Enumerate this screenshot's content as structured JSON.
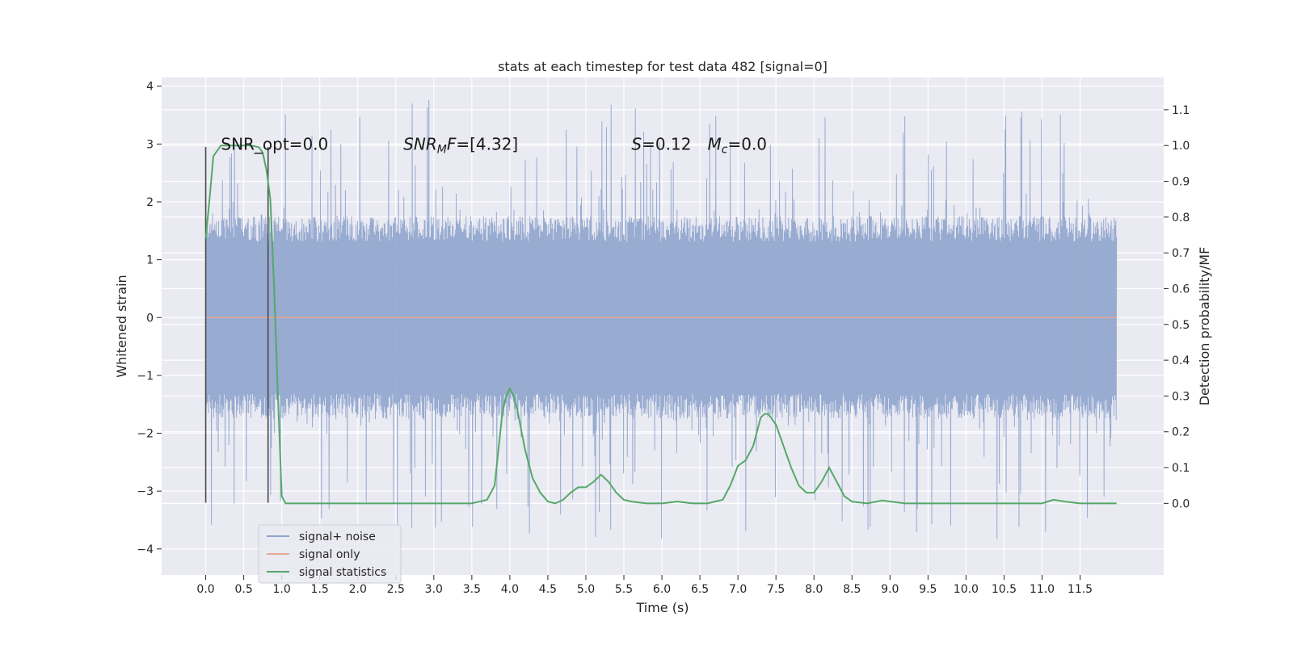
{
  "chart_data": {
    "type": "line",
    "title": "stats at each timestep for test data 482 [signal=0]",
    "xlabel": "Time (s)",
    "ylabel_left": "Whitened strain",
    "ylabel_right": "Detection probability/MF",
    "xlim": [
      -0.58,
      12.6
    ],
    "ylim_left": [
      -4.45,
      4.15
    ],
    "ylim_right": [
      -0.2,
      1.19
    ],
    "x_ticks": [
      "0.0",
      "0.5",
      "1.0",
      "1.5",
      "2.0",
      "2.5",
      "3.0",
      "3.5",
      "4.0",
      "4.5",
      "5.0",
      "5.5",
      "6.0",
      "6.5",
      "7.0",
      "7.5",
      "8.0",
      "8.5",
      "9.0",
      "9.5",
      "10.0",
      "10.5",
      "11.0",
      "11.5"
    ],
    "y_ticks_left": [
      "−4",
      "−3",
      "−2",
      "−1",
      "0",
      "1",
      "2",
      "3",
      "4"
    ],
    "y_ticks_right": [
      "0.0",
      "0.1",
      "0.2",
      "0.3",
      "0.4",
      "0.5",
      "0.6",
      "0.7",
      "0.8",
      "0.9",
      "1.0",
      "1.1"
    ],
    "grid": true,
    "legend_position": "lower-left",
    "colors": {
      "background": "#eaeaf2",
      "grid": "#ffffff",
      "signal_noise": "#8fa4cd",
      "signal_only": "#e8a78f",
      "signal_statistics": "#55a868",
      "markers": "#4a4a4a"
    },
    "annotations": [
      {
        "prefix": "SNR_opt=0.0",
        "sub": "",
        "suffix": "",
        "x": 0.2
      },
      {
        "prefix": "SNR",
        "sub": "M",
        "suffix": "F=[4.32]",
        "x": 2.6
      },
      {
        "prefix": "S=0.12",
        "sub": "",
        "suffix": "",
        "x": 5.6
      },
      {
        "prefix": "M",
        "sub": "c",
        "suffix": "=0.0",
        "x": 6.6
      }
    ],
    "annotation_y": 2.9,
    "vertical_markers": [
      {
        "x": 0.0,
        "y0": -3.2,
        "y1": 2.95
      },
      {
        "x": 0.82,
        "y0": -3.2,
        "y1": 2.95
      }
    ],
    "series": [
      {
        "name": "signal+ noise",
        "axis": "left",
        "kind": "noise",
        "x_range": [
          0.0,
          11.98
        ],
        "body_amplitude": 1.75,
        "peak_up_max": 3.8,
        "peak_down_min": -3.85
      },
      {
        "name": "signal only",
        "axis": "left",
        "x": [
          0.0,
          11.98
        ],
        "y": [
          0.0,
          0.0
        ]
      },
      {
        "name": "signal statistics",
        "axis": "right",
        "x": [
          0.0,
          0.05,
          0.1,
          0.2,
          0.3,
          0.4,
          0.5,
          0.6,
          0.7,
          0.75,
          0.8,
          0.85,
          0.9,
          0.95,
          1.0,
          1.05,
          1.1,
          1.2,
          1.5,
          2.0,
          2.5,
          3.0,
          3.3,
          3.5,
          3.7,
          3.8,
          3.9,
          3.95,
          4.0,
          4.05,
          4.1,
          4.2,
          4.3,
          4.4,
          4.5,
          4.6,
          4.7,
          4.8,
          4.9,
          5.0,
          5.1,
          5.2,
          5.3,
          5.4,
          5.5,
          5.6,
          5.8,
          6.0,
          6.2,
          6.4,
          6.6,
          6.8,
          6.9,
          7.0,
          7.1,
          7.2,
          7.3,
          7.35,
          7.4,
          7.5,
          7.6,
          7.7,
          7.8,
          7.9,
          8.0,
          8.1,
          8.2,
          8.3,
          8.4,
          8.5,
          8.7,
          8.9,
          9.0,
          9.2,
          9.5,
          10.0,
          10.5,
          11.0,
          11.15,
          11.3,
          11.5,
          11.98
        ],
        "y": [
          0.74,
          0.85,
          0.97,
          1.0,
          1.0,
          1.0,
          1.0,
          1.0,
          0.995,
          0.98,
          0.93,
          0.85,
          0.6,
          0.3,
          0.02,
          0.0,
          0.0,
          0.0,
          0.0,
          0.0,
          0.0,
          0.0,
          0.0,
          0.0,
          0.01,
          0.05,
          0.25,
          0.3,
          0.32,
          0.3,
          0.26,
          0.15,
          0.07,
          0.03,
          0.005,
          0.0,
          0.01,
          0.03,
          0.045,
          0.045,
          0.06,
          0.08,
          0.06,
          0.03,
          0.01,
          0.005,
          0.0,
          0.0,
          0.005,
          0.0,
          0.0,
          0.01,
          0.05,
          0.105,
          0.12,
          0.16,
          0.24,
          0.25,
          0.25,
          0.22,
          0.16,
          0.1,
          0.05,
          0.03,
          0.03,
          0.06,
          0.1,
          0.06,
          0.02,
          0.005,
          0.0,
          0.008,
          0.005,
          0.0,
          0.0,
          0.0,
          0.0,
          0.0,
          0.01,
          0.005,
          0.0,
          0.0
        ]
      }
    ]
  }
}
